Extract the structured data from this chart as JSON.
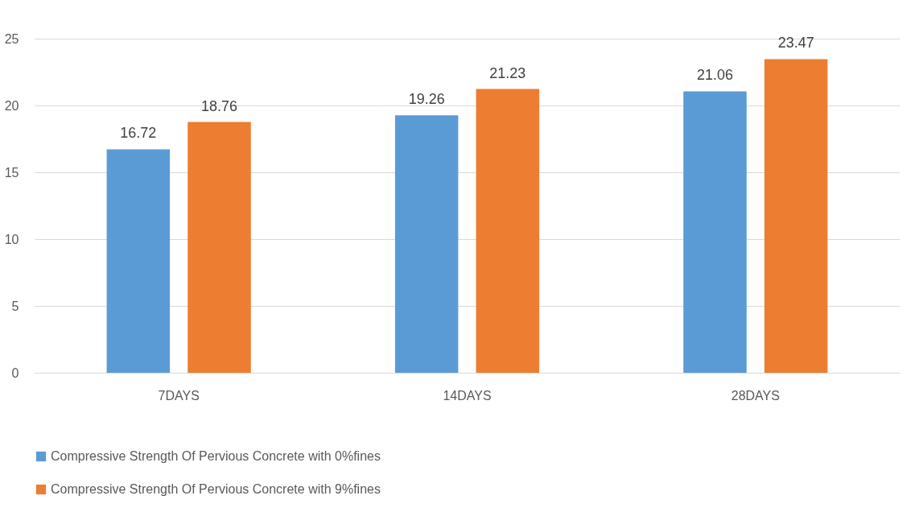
{
  "chart_data": {
    "type": "bar",
    "categories": [
      "7DAYS",
      "14DAYS",
      "28DAYS"
    ],
    "series": [
      {
        "name": "Compressive Strength Of Pervious Concrete with 0%fines",
        "color": "#5b9bd5",
        "values": [
          16.72,
          19.26,
          21.06
        ]
      },
      {
        "name": "Compressive Strength Of Pervious Concrete with 9%fines",
        "color": "#ed7d31",
        "values": [
          18.76,
          21.23,
          23.47
        ]
      }
    ],
    "ylim": [
      0,
      25
    ],
    "yticks": [
      0,
      5,
      10,
      15,
      20,
      25
    ],
    "grid": "y",
    "legend": "bottom",
    "data_labels": true
  }
}
